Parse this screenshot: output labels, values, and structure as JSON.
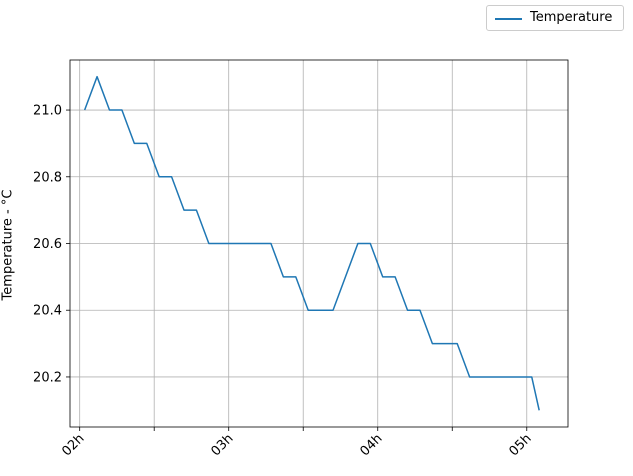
{
  "chart_data": {
    "type": "line",
    "title": "",
    "xlabel": "",
    "ylabel": "Temperature - °C",
    "legend": {
      "placement": "top-right, outside plot"
    },
    "grid": true,
    "x_ticks": [
      {
        "t": 0,
        "label": "02h"
      },
      {
        "t": 30,
        "label": ""
      },
      {
        "t": 60,
        "label": "03h"
      },
      {
        "t": 90,
        "label": ""
      },
      {
        "t": 120,
        "label": "04h"
      },
      {
        "t": 150,
        "label": ""
      },
      {
        "t": 180,
        "label": "05h"
      }
    ],
    "y_ticks": [
      20.2,
      20.4,
      20.6,
      20.8,
      21.0
    ],
    "xlim": [
      -3.9,
      196.6
    ],
    "ylim": [
      20.05,
      21.15
    ],
    "series": [
      {
        "name": "Temperature",
        "color": "#1f77b4",
        "x": [
          2,
          7,
          12,
          17,
          22,
          27,
          32,
          37,
          42,
          47,
          52,
          57,
          62,
          67,
          72,
          77,
          82,
          87,
          92,
          97,
          102,
          107,
          112,
          117,
          122,
          127,
          132,
          137,
          142,
          147,
          152,
          157,
          162,
          167,
          172,
          177,
          182,
          185
        ],
        "y": [
          21.0,
          21.1,
          21.0,
          21.0,
          20.9,
          20.9,
          20.8,
          20.8,
          20.7,
          20.7,
          20.6,
          20.6,
          20.6,
          20.6,
          20.6,
          20.6,
          20.5,
          20.5,
          20.4,
          20.4,
          20.4,
          20.5,
          20.6,
          20.6,
          20.5,
          20.5,
          20.4,
          20.4,
          20.3,
          20.3,
          20.3,
          20.2,
          20.2,
          20.2,
          20.2,
          20.2,
          20.2,
          20.1
        ]
      }
    ]
  }
}
